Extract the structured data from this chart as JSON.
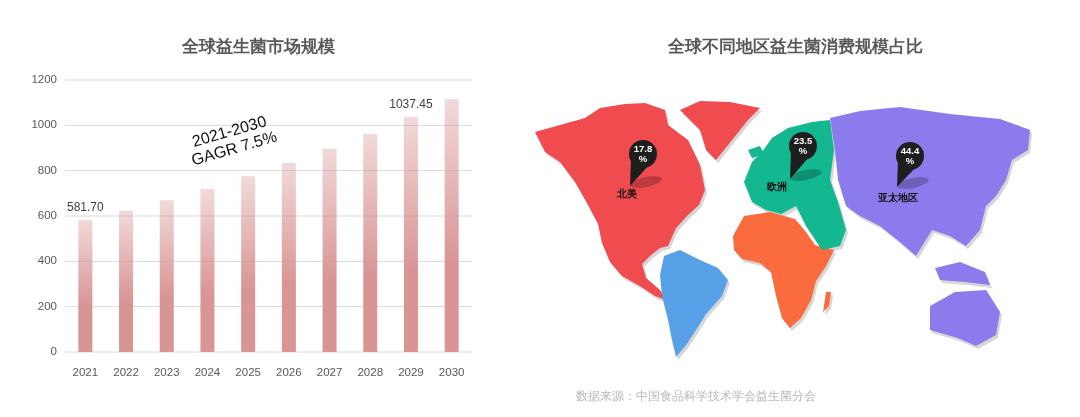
{
  "chart_data": [
    {
      "type": "bar",
      "title": "全球益生菌市场规模",
      "categories": [
        "2021",
        "2022",
        "2023",
        "2024",
        "2025",
        "2026",
        "2027",
        "2028",
        "2029",
        "2030"
      ],
      "values": [
        581.7,
        623,
        670,
        719,
        776,
        834,
        897,
        962,
        1037.45,
        1115
      ],
      "color": "#d99494",
      "value_labels": [
        "581.70",
        null,
        null,
        null,
        null,
        null,
        null,
        null,
        "1037.45",
        null
      ],
      "ylim": [
        0,
        1200
      ],
      "yticks": [
        0,
        200,
        400,
        600,
        800,
        1000,
        1200
      ],
      "grid": "y",
      "annotations": [
        "2021-2030\nGAGR 7.5%"
      ]
    },
    {
      "type": "other",
      "title": "全球不同地区益生菌消费规模占比",
      "categories": [
        "北美",
        "欧洲",
        "亚太地区"
      ],
      "values": [
        17.8,
        23.5,
        44.4
      ],
      "colors": [
        "#1e1e1e",
        "#1e1e1e",
        "#1e1e1e"
      ],
      "value_labels": [
        "17.8\n%",
        "23.5\n%",
        "44.4\n%"
      ],
      "annotations": [
        "数据来源：中国食品科学技术学会益生菌分会"
      ]
    }
  ]
}
